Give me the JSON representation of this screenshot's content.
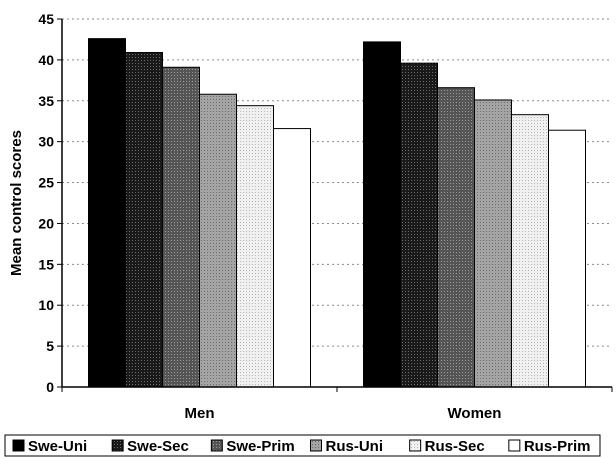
{
  "chart_data": {
    "type": "bar",
    "title": "",
    "xlabel": "",
    "ylabel": "Mean control scores",
    "ylim": [
      0,
      45
    ],
    "yticks": [
      0,
      5,
      10,
      15,
      20,
      25,
      30,
      35,
      40,
      45
    ],
    "grid": "horizontal dotted",
    "legend_position": "bottom",
    "categories": [
      "Men",
      "Women"
    ],
    "series": [
      {
        "name": "Swe-Uni",
        "values": [
          42.6,
          42.2
        ],
        "fill": "#000000",
        "pattern": "solid"
      },
      {
        "name": "Swe-Sec",
        "values": [
          40.9,
          39.6
        ],
        "fill": "#2b2b2b",
        "pattern": "dots-dark"
      },
      {
        "name": "Swe-Prim",
        "values": [
          39.1,
          36.6
        ],
        "fill": "#5e5e5e",
        "pattern": "dots-mid"
      },
      {
        "name": "Rus-Uni",
        "values": [
          35.8,
          35.1
        ],
        "fill": "#9a9a9a",
        "pattern": "dots-light"
      },
      {
        "name": "Rus-Sec",
        "values": [
          34.4,
          33.3
        ],
        "fill": "#e2e2e2",
        "pattern": "dots-faint"
      },
      {
        "name": "Rus-Prim",
        "values": [
          31.6,
          31.4
        ],
        "fill": "#ffffff",
        "pattern": "solid"
      }
    ]
  }
}
